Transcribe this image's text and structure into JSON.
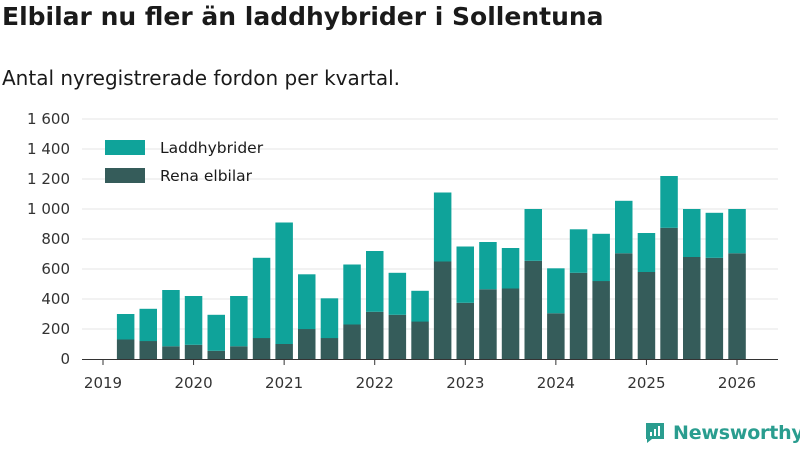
{
  "title": "Elbilar nu fler än laddhybrider i Sollentuna",
  "subtitle": "Antal nyregistrerade fordon per kvartal.",
  "brand": "Newsworthy",
  "colors": {
    "laddhybrider": "#0fa39a",
    "elbilar": "#355c5a",
    "axis": "#333333",
    "grid": "#e6e6e6"
  },
  "chart_data": {
    "type": "bar",
    "stacked": true,
    "title": "Elbilar nu fler än laddhybrider i Sollentuna",
    "subtitle": "Antal nyregistrerade fordon per kvartal.",
    "xlabel": "",
    "ylabel": "",
    "ylim": [
      0,
      1600
    ],
    "yticks": [
      0,
      200,
      400,
      600,
      800,
      1000,
      1200,
      1400,
      1600
    ],
    "ytick_labels": [
      "0",
      "200",
      "400",
      "600",
      "800",
      "1 000",
      "1 200",
      "1 400",
      "1 600"
    ],
    "x_tick_labels": [
      "2019",
      "2020",
      "2021",
      "2022",
      "2023",
      "2024",
      "2025",
      "2026"
    ],
    "legend_position": "top-left",
    "categories": [
      "2019 Q2",
      "2019 Q3",
      "2019 Q4",
      "2020 Q1",
      "2020 Q2",
      "2020 Q3",
      "2020 Q4",
      "2021 Q1",
      "2021 Q2",
      "2021 Q3",
      "2021 Q4",
      "2022 Q1",
      "2022 Q2",
      "2022 Q3",
      "2022 Q4",
      "2023 Q1",
      "2023 Q2",
      "2023 Q3",
      "2023 Q4",
      "2024 Q1",
      "2024 Q2",
      "2024 Q3",
      "2024 Q4",
      "2025 Q1",
      "2025 Q2",
      "2025 Q3",
      "2025 Q4",
      "2026 Q1"
    ],
    "series": [
      {
        "name": "Rena elbilar",
        "values": [
          130,
          120,
          85,
          95,
          55,
          85,
          140,
          100,
          200,
          140,
          230,
          315,
          295,
          250,
          650,
          375,
          465,
          470,
          655,
          305,
          575,
          520,
          705,
          580,
          875,
          680,
          675,
          705
        ]
      },
      {
        "name": "Laddhybrider",
        "values": [
          170,
          215,
          375,
          325,
          240,
          335,
          535,
          810,
          365,
          265,
          400,
          405,
          280,
          205,
          460,
          375,
          315,
          270,
          345,
          300,
          290,
          315,
          350,
          260,
          345,
          320,
          300,
          295
        ]
      }
    ]
  }
}
